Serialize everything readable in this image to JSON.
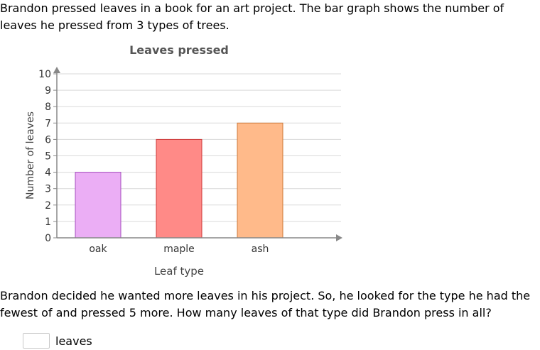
{
  "problem": {
    "intro": "Brandon pressed leaves in a book for an art project. The bar graph shows the number of leaves he pressed from 3 types of trees.",
    "question": "Brandon decided he wanted more leaves in his project. So, he looked for the type he had the fewest of and pressed 5 more. How many leaves of that type did Brandon press in all?"
  },
  "answer": {
    "value": "",
    "unit": "leaves"
  },
  "chart_data": {
    "type": "bar",
    "title": "Leaves pressed",
    "xlabel": "Leaf type",
    "ylabel": "Number of leaves",
    "categories": [
      "oak",
      "maple",
      "ash"
    ],
    "values": [
      4,
      6,
      7
    ],
    "ylim": [
      0,
      10
    ],
    "yticks": [
      "0",
      "1",
      "2",
      "3",
      "4",
      "5",
      "6",
      "7",
      "8",
      "9",
      "10"
    ],
    "grid": true,
    "bar_colors": [
      {
        "fill": "#ebaef5",
        "stroke": "#a64dbe"
      },
      {
        "fill": "#ff8a87",
        "stroke": "#cc3a3a"
      },
      {
        "fill": "#ffba8a",
        "stroke": "#cc7a3a"
      }
    ]
  }
}
